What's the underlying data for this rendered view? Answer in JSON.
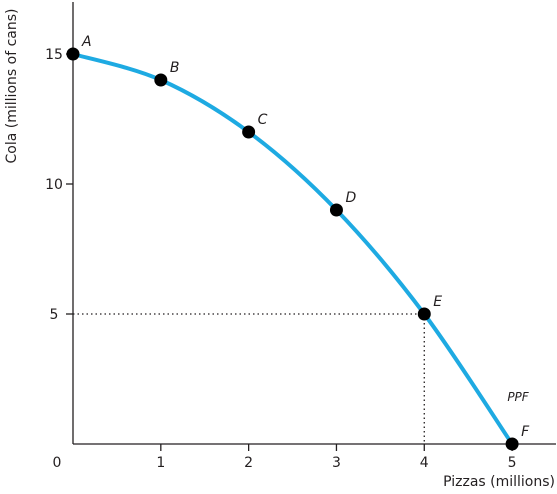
{
  "chart_data": {
    "type": "line",
    "title": "",
    "xlabel": "Pizzas (millions)",
    "ylabel": "Cola (millions of cans)",
    "xlim": [
      0,
      5.5
    ],
    "ylim": [
      0,
      17
    ],
    "origin_label": "0",
    "x_ticks": [
      1,
      2,
      3,
      4,
      5
    ],
    "x_tick_labels": [
      "1",
      "2",
      "3",
      "4",
      "5"
    ],
    "y_ticks": [
      5,
      10,
      15
    ],
    "y_tick_labels": [
      "5",
      "10",
      "15"
    ],
    "grid": false,
    "curve_label": "PPF",
    "curve_color": "#1eaae2",
    "series": [
      {
        "name": "PPF",
        "points": [
          {
            "label": "A",
            "x": 0,
            "y": 15
          },
          {
            "label": "B",
            "x": 1,
            "y": 14
          },
          {
            "label": "C",
            "x": 2,
            "y": 12
          },
          {
            "label": "D",
            "x": 3,
            "y": 9
          },
          {
            "label": "E",
            "x": 4,
            "y": 5
          },
          {
            "label": "F",
            "x": 5,
            "y": 0
          }
        ]
      }
    ],
    "guides": [
      {
        "x": 4,
        "y": 5
      }
    ]
  }
}
